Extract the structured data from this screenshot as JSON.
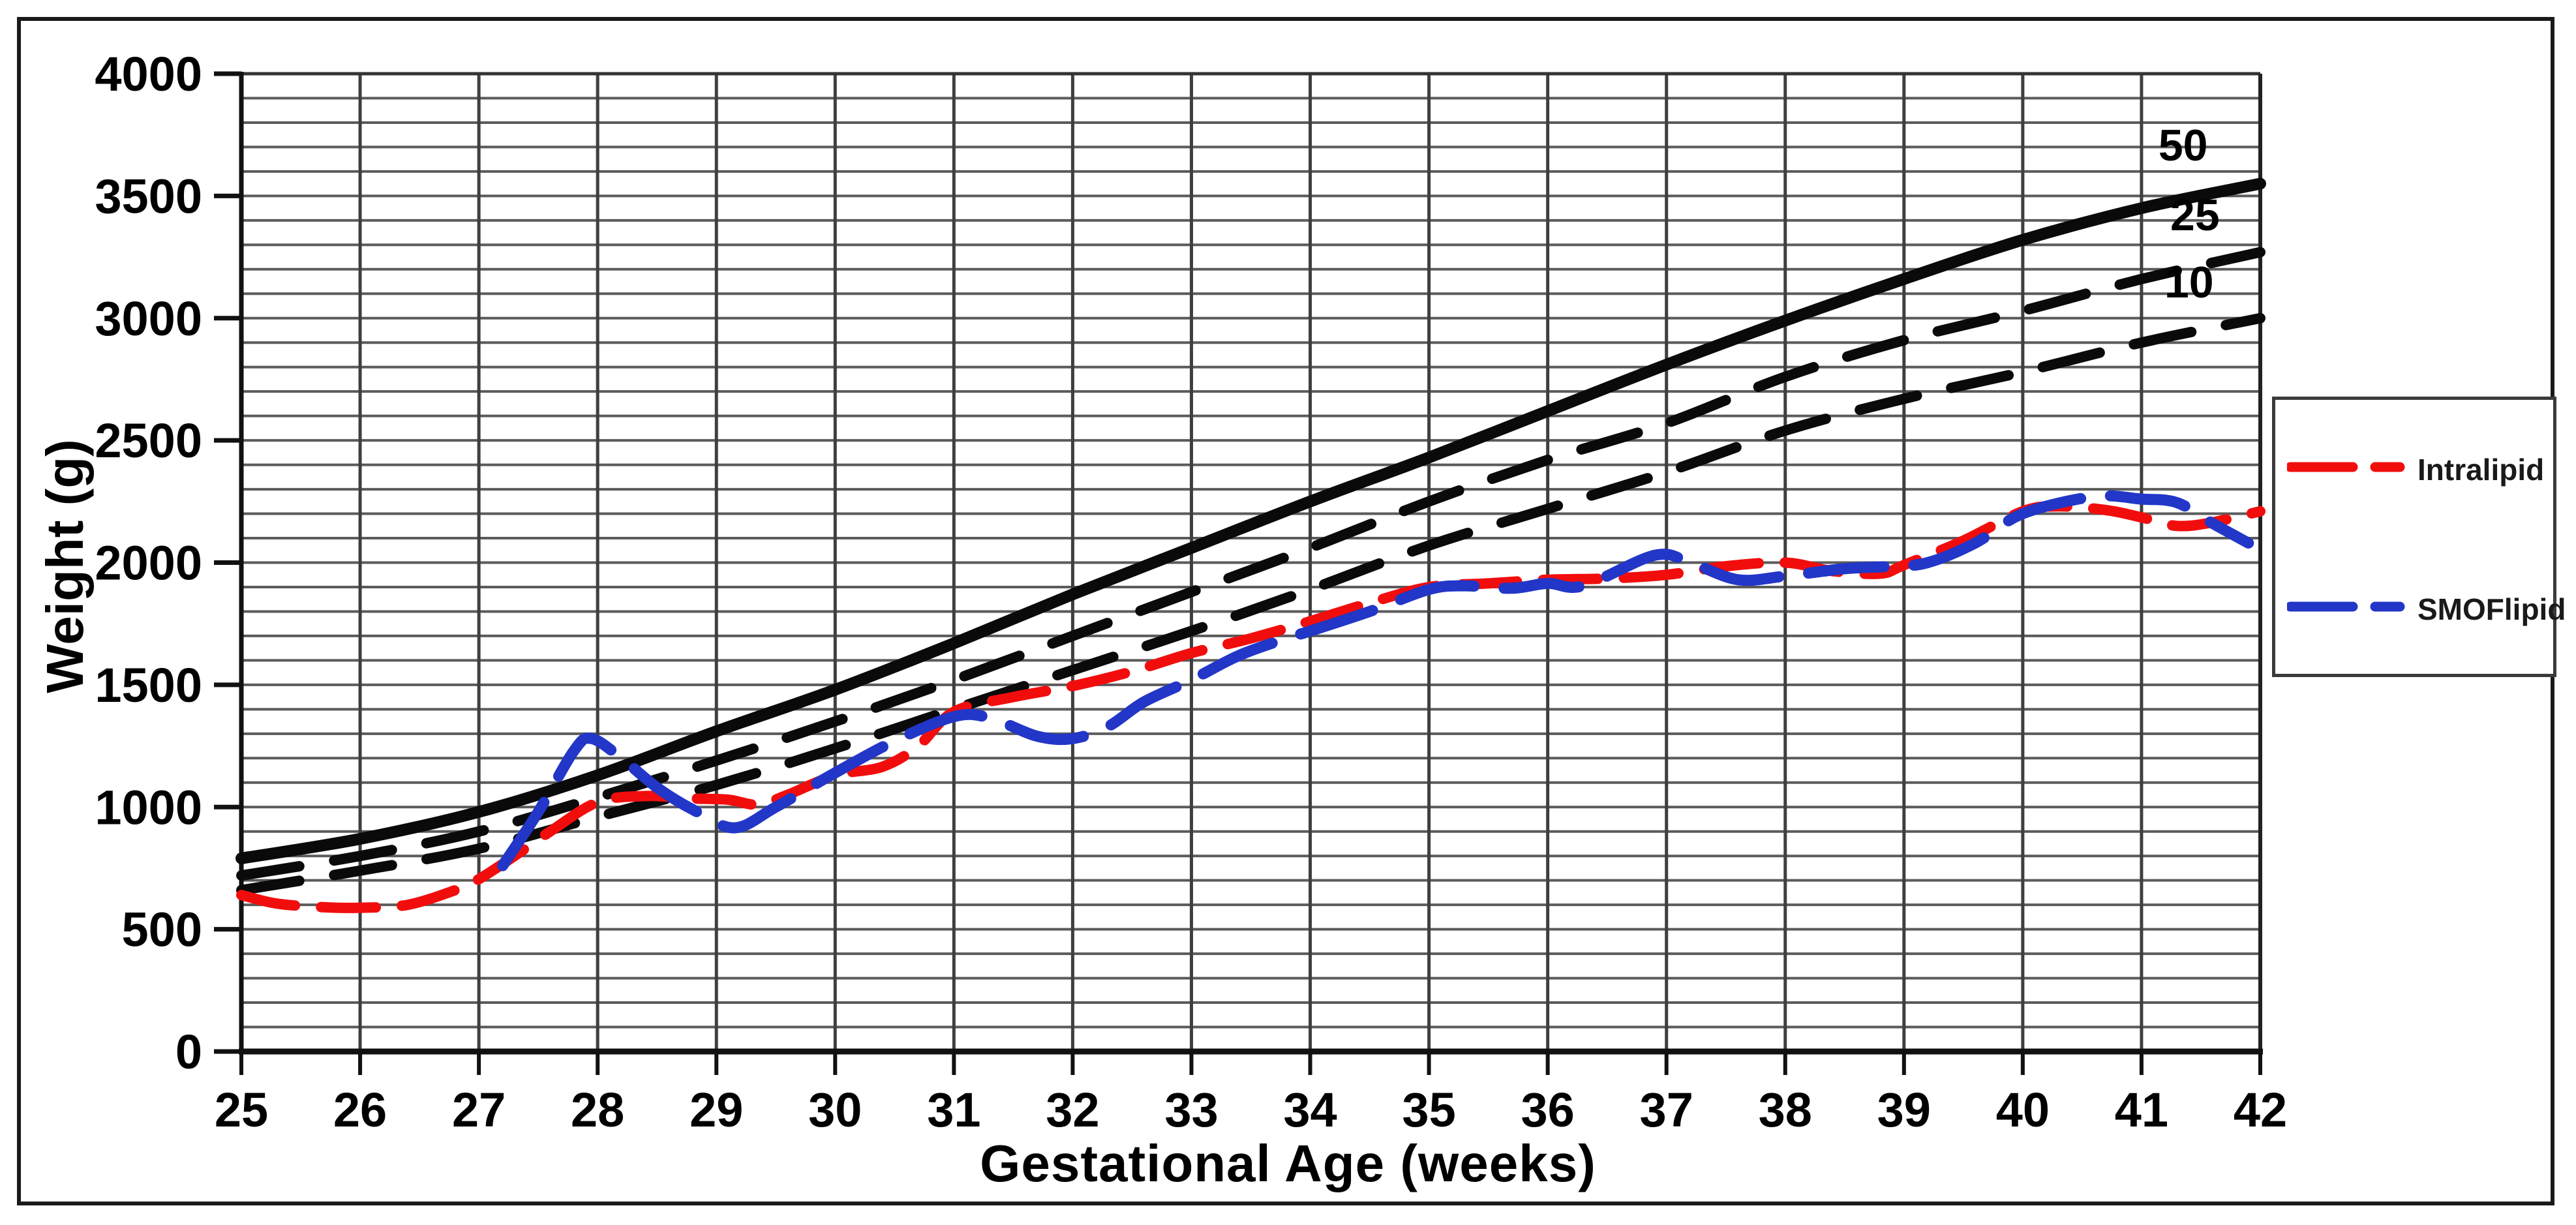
{
  "figure": {
    "x_axis_title": "Gestational Age (weeks)",
    "y_axis_title": "Weight (g)"
  },
  "legend": {
    "entries": [
      {
        "label": "Intralipid",
        "color": "#f20d0d"
      },
      {
        "label": "SMOFlipid",
        "color": "#2236c7"
      }
    ]
  },
  "chart_data": {
    "type": "line",
    "xlabel": "Gestational Age (weeks)",
    "ylabel": "Weight (g)",
    "xlim": [
      25,
      42
    ],
    "ylim": [
      0,
      4000
    ],
    "x_ticks": [
      25,
      26,
      27,
      28,
      29,
      30,
      31,
      32,
      33,
      34,
      35,
      36,
      37,
      38,
      39,
      40,
      41,
      42
    ],
    "y_ticks": [
      0,
      500,
      1000,
      1500,
      2000,
      2500,
      3000,
      3500,
      4000
    ],
    "y_minor_step": 100,
    "grid": true,
    "legend_position": "right-outside",
    "annotations": [
      {
        "text": "50",
        "week": 41.35,
        "grams": 3645
      },
      {
        "text": "25",
        "week": 41.45,
        "grams": 3360
      },
      {
        "text": "10",
        "week": 41.4,
        "grams": 3085
      }
    ],
    "series": [
      {
        "name": "50th percentile",
        "color": "#0a0a0a",
        "style": "solid",
        "width": 18,
        "points": [
          [
            25,
            790
          ],
          [
            26,
            870
          ],
          [
            27,
            980
          ],
          [
            28,
            1130
          ],
          [
            29,
            1310
          ],
          [
            30,
            1480
          ],
          [
            31,
            1670
          ],
          [
            32,
            1870
          ],
          [
            33,
            2060
          ],
          [
            34,
            2250
          ],
          [
            35,
            2430
          ],
          [
            36,
            2620
          ],
          [
            37,
            2810
          ],
          [
            38,
            2990
          ],
          [
            39,
            3160
          ],
          [
            40,
            3320
          ],
          [
            41,
            3450
          ],
          [
            42,
            3550
          ]
        ]
      },
      {
        "name": "25th percentile",
        "color": "#0a0a0a",
        "style": "dashed",
        "width": 16,
        "points": [
          [
            25,
            720
          ],
          [
            26,
            800
          ],
          [
            27,
            900
          ],
          [
            28,
            1040
          ],
          [
            29,
            1190
          ],
          [
            30,
            1350
          ],
          [
            31,
            1520
          ],
          [
            32,
            1700
          ],
          [
            33,
            1880
          ],
          [
            34,
            2060
          ],
          [
            35,
            2250
          ],
          [
            36,
            2420
          ],
          [
            37,
            2570
          ],
          [
            38,
            2760
          ],
          [
            39,
            2910
          ],
          [
            40,
            3030
          ],
          [
            41,
            3160
          ],
          [
            42,
            3270
          ]
        ]
      },
      {
        "name": "10th percentile",
        "color": "#0a0a0a",
        "style": "dashed",
        "width": 16,
        "points": [
          [
            25,
            660
          ],
          [
            26,
            740
          ],
          [
            27,
            830
          ],
          [
            28,
            960
          ],
          [
            29,
            1090
          ],
          [
            30,
            1240
          ],
          [
            31,
            1400
          ],
          [
            32,
            1560
          ],
          [
            33,
            1720
          ],
          [
            34,
            1890
          ],
          [
            35,
            2070
          ],
          [
            36,
            2220
          ],
          [
            37,
            2370
          ],
          [
            38,
            2540
          ],
          [
            39,
            2670
          ],
          [
            40,
            2780
          ],
          [
            41,
            2900
          ],
          [
            42,
            3000
          ]
        ]
      },
      {
        "name": "Intralipid",
        "color": "#f20d0d",
        "style": "dashed-red",
        "width": 16,
        "points": [
          [
            25,
            640
          ],
          [
            25.3,
            605
          ],
          [
            25.7,
            590
          ],
          [
            26,
            588
          ],
          [
            26.4,
            600
          ],
          [
            26.8,
            660
          ],
          [
            27,
            705
          ],
          [
            27.3,
            800
          ],
          [
            27.6,
            900
          ],
          [
            28,
            1020
          ],
          [
            28.4,
            1045
          ],
          [
            28.8,
            1035
          ],
          [
            29.1,
            1030
          ],
          [
            29.35,
            1010
          ],
          [
            29.6,
            1050
          ],
          [
            30,
            1130
          ],
          [
            30.4,
            1165
          ],
          [
            30.7,
            1250
          ],
          [
            31,
            1390
          ],
          [
            31.5,
            1450
          ],
          [
            32,
            1495
          ],
          [
            32.5,
            1555
          ],
          [
            33,
            1630
          ],
          [
            33.5,
            1690
          ],
          [
            34,
            1760
          ],
          [
            34.5,
            1835
          ],
          [
            35,
            1900
          ],
          [
            35.5,
            1915
          ],
          [
            36,
            1930
          ],
          [
            36.5,
            1935
          ],
          [
            37,
            1950
          ],
          [
            37.5,
            1985
          ],
          [
            38,
            2000
          ],
          [
            38.4,
            1965
          ],
          [
            38.8,
            1955
          ],
          [
            39,
            1990
          ],
          [
            39.5,
            2090
          ],
          [
            40,
            2210
          ],
          [
            40.3,
            2230
          ],
          [
            40.7,
            2215
          ],
          [
            41,
            2185
          ],
          [
            41.3,
            2150
          ],
          [
            41.6,
            2165
          ],
          [
            42,
            2210
          ]
        ]
      },
      {
        "name": "SMOFlipid",
        "color": "#2236c7",
        "style": "dashed-blue",
        "width": 17,
        "points": [
          [
            27.2,
            760
          ],
          [
            27.5,
            980
          ],
          [
            27.8,
            1230
          ],
          [
            27.95,
            1280
          ],
          [
            28.2,
            1200
          ],
          [
            28.5,
            1080
          ],
          [
            28.8,
            990
          ],
          [
            29.15,
            915
          ],
          [
            29.5,
            1000
          ],
          [
            30,
            1140
          ],
          [
            30.5,
            1270
          ],
          [
            31,
            1370
          ],
          [
            31.3,
            1365
          ],
          [
            31.7,
            1290
          ],
          [
            32,
            1280
          ],
          [
            32.3,
            1330
          ],
          [
            32.6,
            1430
          ],
          [
            33,
            1520
          ],
          [
            33.4,
            1620
          ],
          [
            33.8,
            1690
          ],
          [
            34,
            1720
          ],
          [
            34.5,
            1800
          ],
          [
            35,
            1890
          ],
          [
            35.3,
            1905
          ],
          [
            35.7,
            1895
          ],
          [
            36,
            1915
          ],
          [
            36.3,
            1905
          ],
          [
            36.9,
            2030
          ],
          [
            37.2,
            2000
          ],
          [
            37.6,
            1930
          ],
          [
            38,
            1945
          ],
          [
            38.5,
            1975
          ],
          [
            38.9,
            1985
          ],
          [
            39.2,
            2000
          ],
          [
            39.6,
            2080
          ],
          [
            40,
            2200
          ],
          [
            40.6,
            2270
          ],
          [
            41,
            2260
          ],
          [
            41.3,
            2245
          ],
          [
            41.6,
            2160
          ],
          [
            41.9,
            2080
          ]
        ]
      }
    ]
  }
}
